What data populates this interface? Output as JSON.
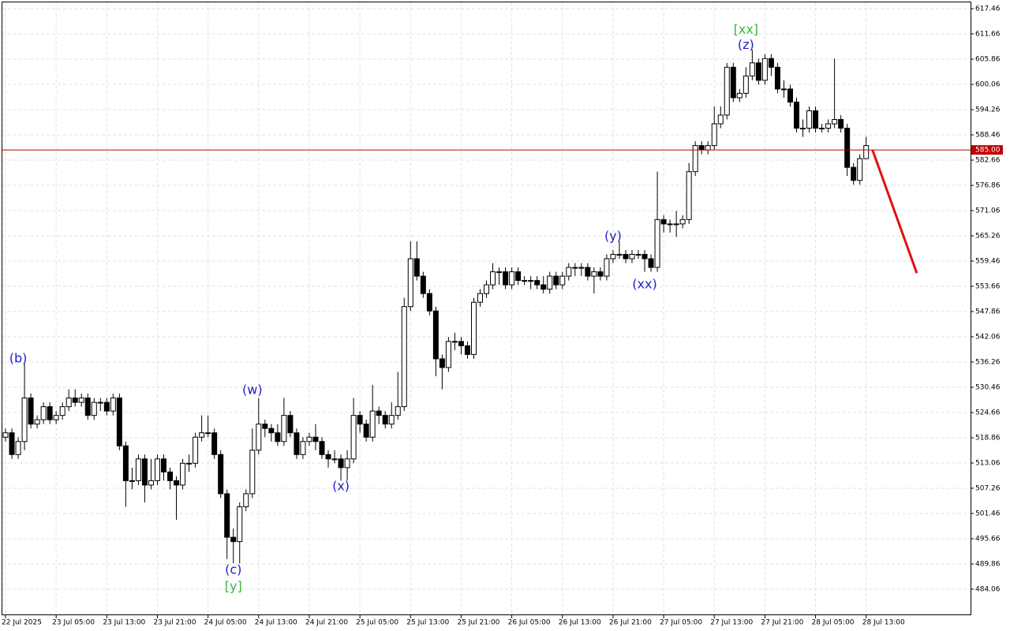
{
  "chart_data": {
    "type": "candlestick",
    "categories": [
      "22 Jul 2025",
      null,
      null,
      null,
      null,
      null,
      null,
      null,
      "23 Jul 05:00",
      null,
      null,
      null,
      null,
      null,
      null,
      null,
      "23 Jul 13:00",
      null,
      null,
      null,
      null,
      null,
      null,
      null,
      "23 Jul 21:00",
      null,
      null,
      null,
      null,
      null,
      null,
      null,
      "24 Jul 05:00",
      null,
      null,
      null,
      null,
      null,
      null,
      null,
      "24 Jul 13:00",
      null,
      null,
      null,
      null,
      null,
      null,
      null,
      "24 Jul 21:00",
      null,
      null,
      null,
      null,
      null,
      null,
      null,
      "25 Jul 05:00",
      null,
      null,
      null,
      null,
      null,
      null,
      null,
      "25 Jul 13:00",
      null,
      null,
      null,
      null,
      null,
      null,
      null,
      "25 Jul 21:00",
      null,
      null,
      null,
      null,
      null,
      null,
      null,
      "26 Jul 05:00",
      null,
      null,
      null,
      null,
      null,
      null,
      null,
      "26 Jul 13:00",
      null,
      null,
      null,
      null,
      null,
      null,
      null,
      "26 Jul 21:00",
      null,
      null,
      null,
      null,
      null,
      null,
      null,
      "27 Jul 05:00",
      null,
      null,
      null,
      null,
      null,
      null,
      null,
      "27 Jul 13:00",
      null,
      null,
      null,
      null,
      null,
      null,
      null,
      "27 Jul 21:00",
      null,
      null,
      null,
      null,
      null,
      null,
      null,
      "28 Jul 05:00",
      null,
      null,
      null,
      null,
      null,
      null,
      null,
      "28 Jul 13:00"
    ],
    "open": [
      519,
      520,
      515,
      518,
      528,
      522,
      523,
      526,
      523,
      524,
      526,
      528,
      527,
      528,
      524,
      527,
      527,
      525,
      528,
      517,
      509,
      509,
      514,
      508,
      509,
      514,
      511,
      509,
      508,
      513,
      513,
      519,
      520,
      520,
      515,
      506,
      496,
      495,
      503,
      506,
      516,
      522,
      521,
      520,
      518,
      524,
      520,
      515,
      518,
      519,
      518,
      515,
      514,
      514,
      512,
      514,
      524,
      522,
      519,
      525,
      524,
      522,
      524,
      526,
      549,
      560,
      556,
      552,
      548,
      537,
      535,
      541,
      541,
      540,
      538,
      550,
      552,
      554,
      557,
      557,
      554,
      557,
      555,
      555,
      555,
      554,
      553,
      556,
      554,
      556,
      558,
      558,
      558,
      556,
      557,
      556,
      560,
      561,
      561,
      560,
      561,
      561,
      560,
      558,
      569,
      568,
      568,
      568,
      569,
      580,
      586,
      585,
      586,
      591,
      593,
      604,
      597,
      598,
      602,
      605,
      601,
      606,
      604,
      599,
      599,
      596,
      590,
      590,
      594,
      590,
      590,
      591,
      592,
      590,
      581,
      578,
      583
    ],
    "high": [
      521,
      521,
      519,
      536,
      529,
      524,
      527,
      527,
      525,
      527,
      530,
      530,
      529,
      529,
      528,
      528,
      528,
      529,
      529,
      518,
      512,
      515,
      515,
      514,
      515,
      515,
      512,
      510,
      514,
      515,
      520,
      524,
      524,
      521,
      516,
      507,
      498,
      504,
      507,
      521,
      528,
      523,
      522,
      522,
      528,
      525,
      521,
      519,
      520,
      522,
      519,
      516,
      516,
      515,
      516,
      528,
      525,
      523,
      531,
      526,
      525,
      527,
      534,
      551,
      564,
      564,
      557,
      553,
      549,
      538,
      542,
      543,
      542,
      541,
      551,
      553,
      555,
      559,
      558,
      558,
      558,
      558,
      556,
      556,
      556,
      556,
      557,
      557,
      557,
      559,
      559,
      559,
      559,
      558,
      558,
      561,
      562,
      564,
      562,
      562,
      562,
      562,
      561,
      580,
      570,
      569,
      571,
      570,
      582,
      587,
      587,
      587,
      595,
      595,
      605,
      605,
      599,
      604,
      608,
      606,
      607,
      607,
      605,
      601,
      600,
      597,
      592,
      595,
      595,
      591,
      592,
      606,
      593,
      591,
      582,
      584,
      588
    ],
    "low": [
      518,
      514,
      514,
      516,
      521,
      521,
      522,
      522,
      522,
      523,
      525,
      526,
      526,
      523,
      523,
      525,
      524,
      524,
      516,
      503,
      507,
      508,
      504,
      507,
      508,
      509,
      507,
      500,
      507,
      511,
      512,
      518,
      519,
      514,
      505,
      491,
      490,
      490,
      502,
      505,
      515,
      519,
      518,
      517,
      517,
      519,
      514,
      514,
      517,
      516,
      514,
      512,
      513,
      509,
      509,
      513,
      520,
      518,
      518,
      522,
      521,
      521,
      523,
      525,
      548,
      555,
      551,
      547,
      533,
      530,
      534,
      539,
      538,
      537,
      537,
      549,
      551,
      553,
      554,
      553,
      553,
      554,
      554,
      553,
      553,
      552,
      552,
      553,
      553,
      555,
      556,
      556,
      555,
      552,
      555,
      555,
      559,
      560,
      559,
      559,
      560,
      557,
      557,
      557,
      566,
      566,
      565,
      567,
      568,
      579,
      584,
      584,
      585,
      590,
      592,
      596,
      596,
      597,
      601,
      600,
      600,
      602,
      598,
      597,
      595,
      589,
      588,
      589,
      589,
      589,
      589,
      590,
      589,
      579,
      577,
      577,
      584
    ],
    "close": [
      520,
      515,
      518,
      528,
      522,
      523,
      526,
      523,
      524,
      526,
      528,
      527,
      528,
      524,
      527,
      527,
      525,
      528,
      517,
      509,
      509,
      514,
      508,
      509,
      514,
      511,
      509,
      508,
      513,
      513,
      519,
      520,
      520,
      515,
      506,
      496,
      495,
      503,
      506,
      516,
      522,
      521,
      520,
      518,
      524,
      520,
      515,
      518,
      519,
      518,
      515,
      514,
      514,
      512,
      514,
      524,
      522,
      519,
      525,
      524,
      522,
      524,
      526,
      549,
      560,
      556,
      552,
      548,
      537,
      535,
      541,
      541,
      540,
      538,
      550,
      552,
      554,
      557,
      557,
      554,
      557,
      555,
      555,
      555,
      554,
      553,
      556,
      554,
      556,
      558,
      558,
      558,
      556,
      557,
      556,
      560,
      561,
      561,
      560,
      561,
      561,
      560,
      558,
      569,
      568,
      568,
      568,
      569,
      580,
      586,
      585,
      586,
      591,
      593,
      604,
      597,
      598,
      602,
      605,
      601,
      606,
      604,
      599,
      599,
      596,
      590,
      590,
      594,
      590,
      590,
      591,
      592,
      590,
      581,
      578,
      583,
      586
    ],
    "up_color": "#ffffff",
    "down_color": "#000000",
    "ylim": [
      478.08,
      618.91
    ],
    "yticks": [
      484.06,
      489.86,
      495.66,
      501.46,
      507.26,
      513.06,
      518.86,
      524.66,
      530.46,
      536.26,
      542.06,
      547.86,
      553.66,
      559.46,
      565.26,
      571.06,
      576.86,
      582.66,
      588.46,
      594.26,
      600.06,
      605.86,
      611.66,
      617.46
    ],
    "grid": true,
    "price_line": {
      "value": 585,
      "label": "585.00",
      "color": "#c00000"
    },
    "forecast": {
      "x": [
        137,
        144
      ],
      "values": [
        585,
        556.7
      ],
      "color": "#e01010"
    },
    "annotations": [
      {
        "text": "(b)",
        "index": 2,
        "price": 537.0,
        "color": "#2020c8"
      },
      {
        "text": "(w)",
        "index": 39,
        "price": 529.7,
        "color": "#2020c8"
      },
      {
        "text": "(x)",
        "index": 53,
        "price": 507.6,
        "color": "#2020c8"
      },
      {
        "text": "(c)",
        "index": 36,
        "price": 488.4,
        "color": "#2020c8"
      },
      {
        "text": "[y]",
        "index": 36,
        "price": 484.6,
        "color": "#3cb43c"
      },
      {
        "text": "(y)",
        "index": 96,
        "price": 565.1,
        "color": "#2020c8"
      },
      {
        "text": "(xx)",
        "index": 101,
        "price": 554.0,
        "color": "#2020c8"
      },
      {
        "text": "(z)",
        "index": 117,
        "price": 609.0,
        "color": "#2020c8"
      },
      {
        "text": "[xx]",
        "index": 117,
        "price": 612.6,
        "color": "#3cb43c"
      }
    ]
  }
}
